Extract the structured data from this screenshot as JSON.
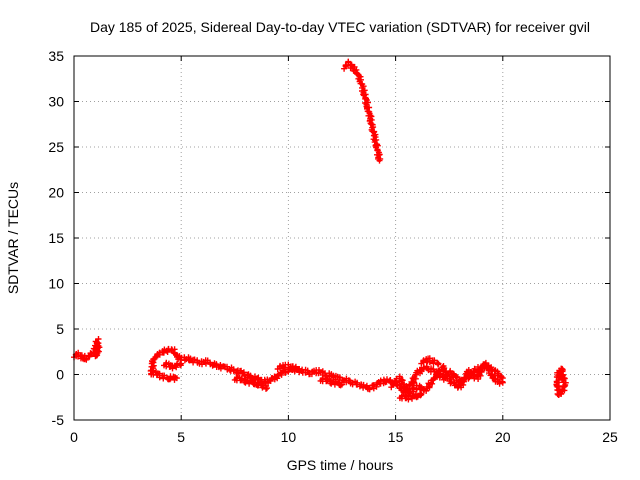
{
  "chart_data": {
    "type": "scatter",
    "title": "Day 185 of 2025, Sidereal Day-to-day VTEC variation (SDTVAR) for receiver gvil",
    "xlabel": "GPS time / hours",
    "ylabel": "SDTVAR / TECUs",
    "xlim": [
      0,
      25
    ],
    "ylim": [
      -5,
      35
    ],
    "xticks": [
      0,
      5,
      10,
      15,
      20,
      25
    ],
    "yticks": [
      -5,
      0,
      5,
      10,
      15,
      20,
      25,
      30,
      35
    ],
    "grid": true,
    "marker": "+",
    "series": [
      {
        "name": "SDTVAR",
        "color": "#ff0000",
        "segments": [
          [
            [
              0.0,
              2.1
            ],
            [
              0.2,
              2.2
            ],
            [
              0.4,
              1.9
            ],
            [
              0.6,
              1.7
            ],
            [
              0.7,
              2.1
            ],
            [
              0.8,
              2.4
            ],
            [
              0.9,
              2.3
            ],
            [
              1.0,
              3.0
            ],
            [
              1.1,
              3.7
            ],
            [
              1.15,
              2.8
            ],
            [
              1.0,
              2.0
            ]
          ],
          [
            [
              3.6,
              0.2
            ],
            [
              3.7,
              1.5
            ],
            [
              3.8,
              2.0
            ],
            [
              4.0,
              2.3
            ],
            [
              4.3,
              2.6
            ],
            [
              4.6,
              2.8
            ],
            [
              4.8,
              1.9
            ],
            [
              5.0,
              1.8
            ],
            [
              5.3,
              1.7
            ],
            [
              5.6,
              1.5
            ],
            [
              5.9,
              1.3
            ],
            [
              6.2,
              1.4
            ],
            [
              6.6,
              1.0
            ],
            [
              7.0,
              0.8
            ],
            [
              7.4,
              0.5
            ],
            [
              7.8,
              0.2
            ],
            [
              8.2,
              -0.2
            ],
            [
              8.6,
              -0.6
            ],
            [
              9.0,
              -0.8
            ],
            [
              9.4,
              -0.3
            ],
            [
              9.8,
              0.3
            ],
            [
              10.2,
              0.6
            ],
            [
              10.6,
              0.4
            ],
            [
              11.0,
              0.2
            ],
            [
              11.4,
              0.3
            ],
            [
              11.8,
              0.0
            ],
            [
              12.2,
              -0.3
            ],
            [
              12.6,
              -0.6
            ],
            [
              13.0,
              -0.9
            ],
            [
              13.4,
              -1.2
            ],
            [
              13.8,
              -1.5
            ],
            [
              14.2,
              -1.0
            ],
            [
              14.6,
              -0.6
            ],
            [
              15.0,
              -1.0
            ],
            [
              15.4,
              -1.8
            ],
            [
              15.8,
              -0.8
            ],
            [
              16.0,
              0.2
            ],
            [
              16.4,
              0.8
            ],
            [
              16.8,
              0.4
            ],
            [
              17.2,
              -0.4
            ],
            [
              17.6,
              0.2
            ],
            [
              18.0,
              -0.8
            ],
            [
              18.4,
              -0.2
            ],
            [
              18.8,
              0.6
            ],
            [
              19.2,
              0.9
            ],
            [
              19.6,
              0.4
            ],
            [
              20.0,
              -0.4
            ]
          ],
          [
            [
              3.6,
              0.3
            ],
            [
              4.0,
              -0.1
            ],
            [
              4.4,
              -0.4
            ],
            [
              4.8,
              -0.4
            ]
          ],
          [
            [
              4.2,
              1.2
            ],
            [
              4.6,
              0.8
            ],
            [
              5.0,
              1.2
            ]
          ],
          [
            [
              7.5,
              -0.4
            ],
            [
              8.0,
              -0.7
            ],
            [
              8.5,
              -1.0
            ],
            [
              9.0,
              -1.5
            ]
          ],
          [
            [
              9.5,
              0.8
            ],
            [
              10.0,
              0.9
            ],
            [
              10.5,
              0.6
            ]
          ],
          [
            [
              11.5,
              -0.5
            ],
            [
              12.0,
              -0.8
            ],
            [
              12.5,
              -1.1
            ]
          ],
          [
            [
              14.8,
              -1.2
            ],
            [
              15.2,
              -0.4
            ],
            [
              15.6,
              -2.1
            ],
            [
              16.0,
              -1.3
            ],
            [
              16.4,
              -1.8
            ],
            [
              16.8,
              -0.4
            ],
            [
              17.2,
              0.8
            ],
            [
              17.6,
              -0.8
            ],
            [
              18.0,
              -1.4
            ],
            [
              18.4,
              0.4
            ],
            [
              18.8,
              -0.4
            ],
            [
              19.2,
              1.2
            ],
            [
              19.6,
              -0.6
            ],
            [
              20.0,
              -0.9
            ]
          ],
          [
            [
              16.2,
              1.4
            ],
            [
              16.6,
              1.6
            ],
            [
              17.0,
              1.2
            ]
          ],
          [
            [
              15.2,
              -2.4
            ],
            [
              15.6,
              -2.6
            ],
            [
              16.2,
              -2.2
            ]
          ],
          [
            [
              22.7,
              0.6
            ],
            [
              22.8,
              -0.2
            ],
            [
              22.9,
              -1.0
            ],
            [
              22.8,
              -1.9
            ],
            [
              22.6,
              -2.2
            ],
            [
              22.55,
              -0.8
            ],
            [
              22.6,
              0.3
            ],
            [
              22.8,
              0.5
            ]
          ],
          [
            [
              12.6,
              33.8
            ],
            [
              12.8,
              34.2
            ],
            [
              13.0,
              33.7
            ],
            [
              13.3,
              32.8
            ],
            [
              13.5,
              31.2
            ],
            [
              13.7,
              29.4
            ],
            [
              13.9,
              27.3
            ],
            [
              14.1,
              25.3
            ],
            [
              14.25,
              23.5
            ]
          ]
        ]
      }
    ]
  }
}
